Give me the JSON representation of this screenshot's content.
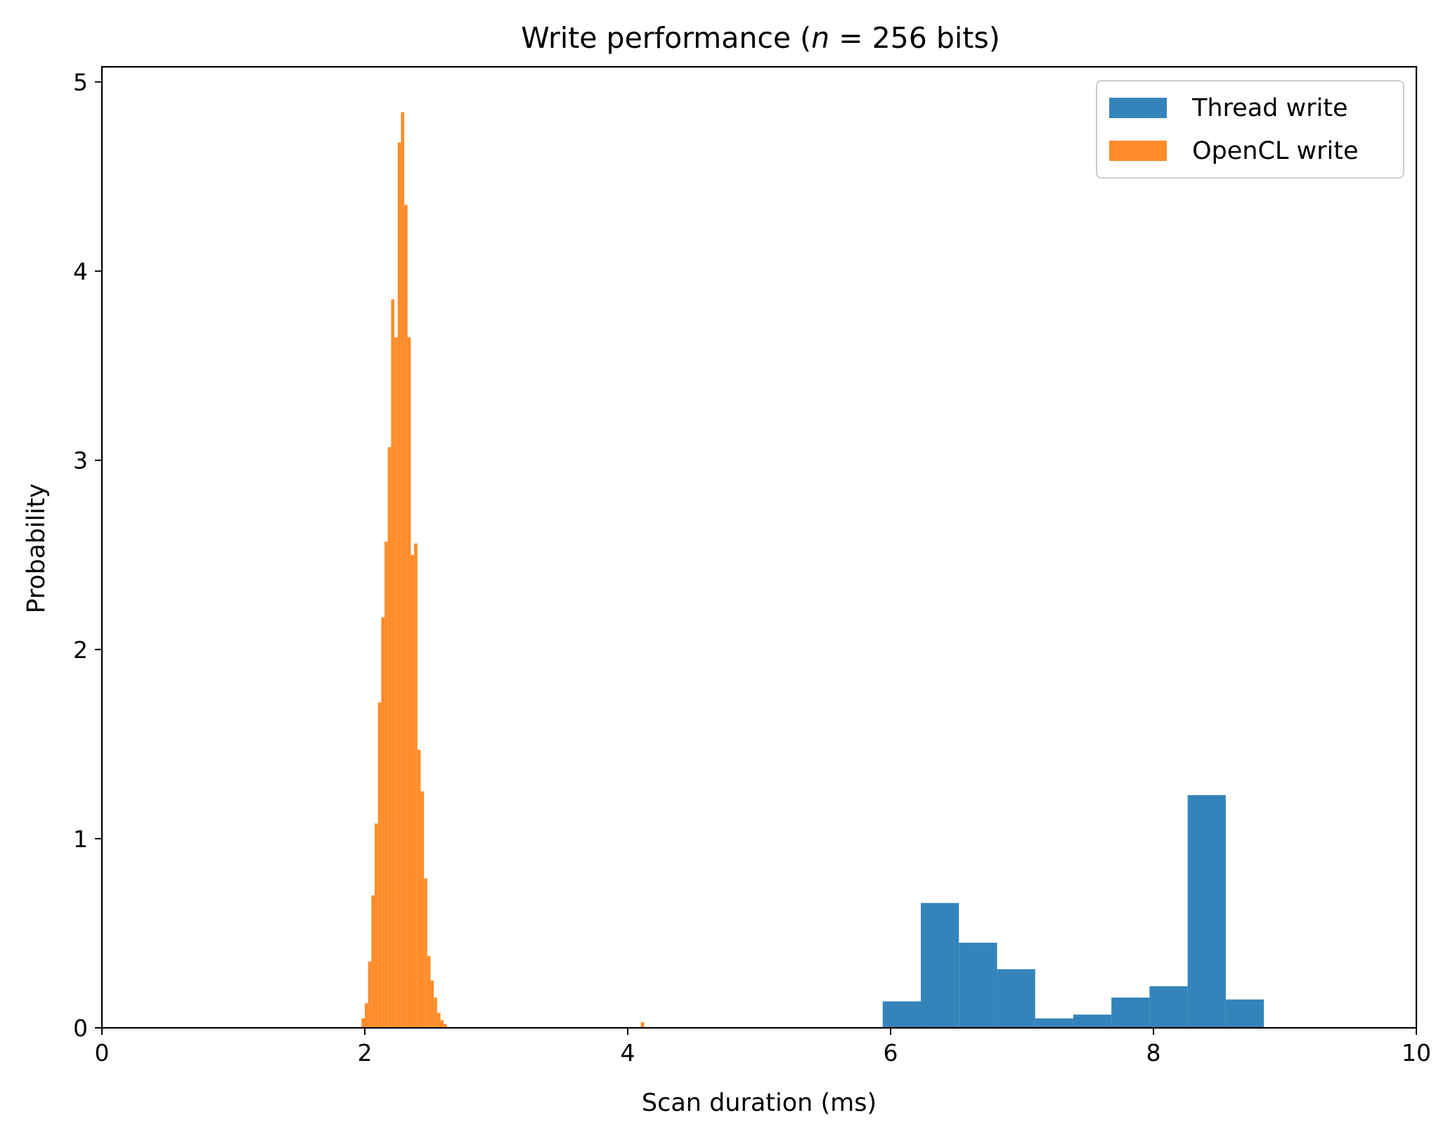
{
  "title_prefix": "Write performance (",
  "title_var": "n",
  "title_suffix": " = 256 bits)",
  "chart_data": {
    "type": "bar",
    "subtype": "histogram",
    "title": "Write performance (n = 256 bits)",
    "xlabel": "Scan duration (ms)",
    "ylabel": "Probability",
    "xlim": [
      0,
      10
    ],
    "ylim": [
      0,
      5.08
    ],
    "xticks": [
      0,
      2,
      4,
      6,
      8,
      10
    ],
    "yticks": [
      0,
      1,
      2,
      3,
      4,
      5
    ],
    "xtick_labels": [
      "0",
      "2",
      "4",
      "6",
      "8",
      "10"
    ],
    "ytick_labels": [
      "0",
      "1",
      "2",
      "3",
      "4",
      "5"
    ],
    "grid": false,
    "legend_position": "top-right",
    "series": [
      {
        "name": "Thread write",
        "color": "#3484bb",
        "bins": [
          {
            "x0": 5.94,
            "x1": 6.23,
            "value": 0.14
          },
          {
            "x0": 6.23,
            "x1": 6.52,
            "value": 0.66
          },
          {
            "x0": 6.52,
            "x1": 6.81,
            "value": 0.45
          },
          {
            "x0": 6.81,
            "x1": 7.1,
            "value": 0.31
          },
          {
            "x0": 7.1,
            "x1": 7.39,
            "value": 0.05
          },
          {
            "x0": 7.39,
            "x1": 7.68,
            "value": 0.07
          },
          {
            "x0": 7.68,
            "x1": 7.97,
            "value": 0.16
          },
          {
            "x0": 7.97,
            "x1": 8.26,
            "value": 0.22
          },
          {
            "x0": 8.26,
            "x1": 8.55,
            "value": 1.23
          },
          {
            "x0": 8.55,
            "x1": 8.84,
            "value": 0.15
          }
        ]
      },
      {
        "name": "OpenCL write",
        "color": "#ff8c2a",
        "bins": [
          {
            "x0": 1.975,
            "x1": 2.0,
            "value": 0.05
          },
          {
            "x0": 2.0,
            "x1": 2.025,
            "value": 0.13
          },
          {
            "x0": 2.025,
            "x1": 2.05,
            "value": 0.35
          },
          {
            "x0": 2.05,
            "x1": 2.075,
            "value": 0.7
          },
          {
            "x0": 2.075,
            "x1": 2.1,
            "value": 1.08
          },
          {
            "x0": 2.1,
            "x1": 2.125,
            "value": 1.72
          },
          {
            "x0": 2.125,
            "x1": 2.15,
            "value": 2.17
          },
          {
            "x0": 2.15,
            "x1": 2.175,
            "value": 2.57
          },
          {
            "x0": 2.175,
            "x1": 2.2,
            "value": 3.07
          },
          {
            "x0": 2.2,
            "x1": 2.225,
            "value": 3.85
          },
          {
            "x0": 2.225,
            "x1": 2.25,
            "value": 3.65
          },
          {
            "x0": 2.25,
            "x1": 2.275,
            "value": 4.68
          },
          {
            "x0": 2.275,
            "x1": 2.3,
            "value": 4.84
          },
          {
            "x0": 2.3,
            "x1": 2.325,
            "value": 4.35
          },
          {
            "x0": 2.325,
            "x1": 2.35,
            "value": 3.65
          },
          {
            "x0": 2.35,
            "x1": 2.375,
            "value": 2.5
          },
          {
            "x0": 2.375,
            "x1": 2.4,
            "value": 2.56
          },
          {
            "x0": 2.4,
            "x1": 2.425,
            "value": 1.47
          },
          {
            "x0": 2.425,
            "x1": 2.45,
            "value": 1.25
          },
          {
            "x0": 2.45,
            "x1": 2.475,
            "value": 0.79
          },
          {
            "x0": 2.475,
            "x1": 2.5,
            "value": 0.38
          },
          {
            "x0": 2.5,
            "x1": 2.525,
            "value": 0.25
          },
          {
            "x0": 2.525,
            "x1": 2.55,
            "value": 0.16
          },
          {
            "x0": 2.55,
            "x1": 2.575,
            "value": 0.08
          },
          {
            "x0": 2.575,
            "x1": 2.6,
            "value": 0.04
          },
          {
            "x0": 2.6,
            "x1": 2.625,
            "value": 0.02
          },
          {
            "x0": 4.1,
            "x1": 4.125,
            "value": 0.03
          }
        ]
      }
    ]
  }
}
